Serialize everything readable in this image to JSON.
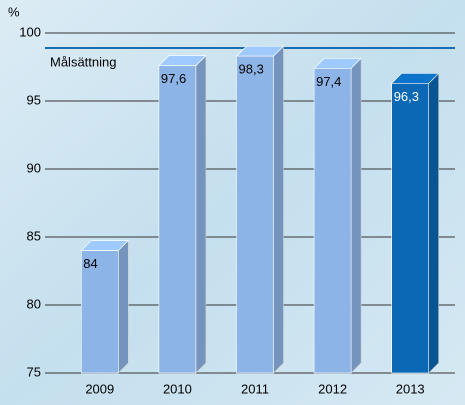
{
  "chart_data": {
    "type": "bar3d",
    "y_label": "%",
    "categories": [
      "2009",
      "2010",
      "2011",
      "2012",
      "2013"
    ],
    "values": [
      84,
      97.6,
      98.3,
      97.4,
      96.3
    ],
    "value_labels": [
      "84",
      "97,6",
      "98,3",
      "97,4",
      "96,3"
    ],
    "colors": [
      "#8db4e6",
      "#8db4e6",
      "#8db4e6",
      "#8db4e6",
      "#0b68b4"
    ],
    "label_colors": [
      "#000000",
      "#000000",
      "#000000",
      "#000000",
      "#ffffff"
    ],
    "target": {
      "label": "Målsättning",
      "value": 98.9,
      "color": "#1a6db3"
    },
    "ylim": [
      75,
      100
    ],
    "yticks": [
      75,
      80,
      85,
      90,
      95,
      100
    ],
    "grid": true
  }
}
